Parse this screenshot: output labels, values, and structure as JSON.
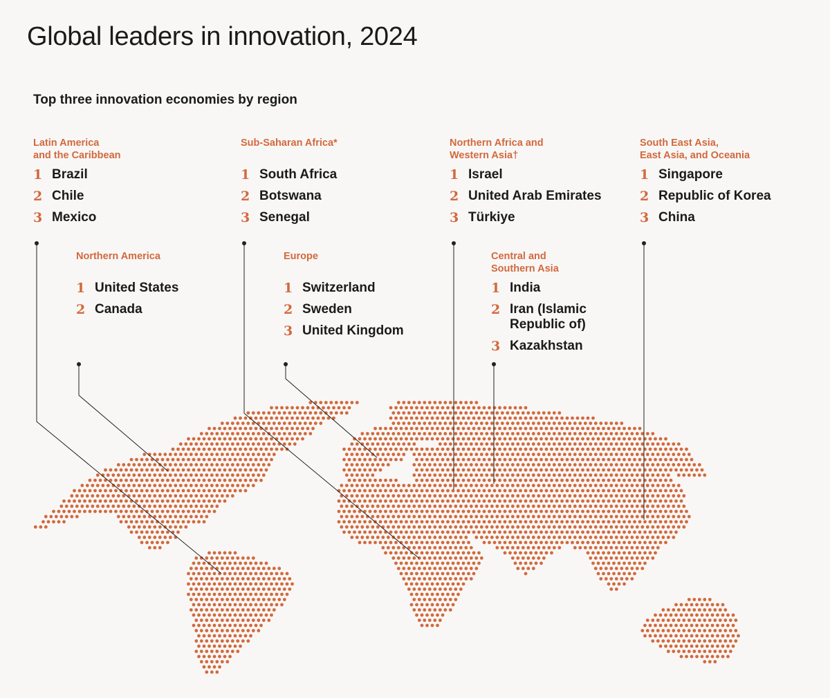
{
  "title": "Global leaders in innovation, 2024",
  "subtitle": "Top three innovation economies by region",
  "colors": {
    "accent": "#d2693c",
    "text": "#1a1a1a",
    "background": "#f8f7f6",
    "leader": "#222222"
  },
  "regions": {
    "latin_america": {
      "name": "Latin America\nand the Caribbean",
      "rankings": [
        {
          "rank": "1",
          "name": "Brazil"
        },
        {
          "rank": "2",
          "name": "Chile"
        },
        {
          "rank": "3",
          "name": "Mexico"
        }
      ]
    },
    "sub_saharan_africa": {
      "name": "Sub-Saharan Africa*",
      "rankings": [
        {
          "rank": "1",
          "name": "South Africa"
        },
        {
          "rank": "2",
          "name": "Botswana"
        },
        {
          "rank": "3",
          "name": "Senegal"
        }
      ]
    },
    "northern_africa_western_asia": {
      "name": "Northern Africa and\nWestern Asia†",
      "rankings": [
        {
          "rank": "1",
          "name": "Israel"
        },
        {
          "rank": "2",
          "name": "United Arab Emirates"
        },
        {
          "rank": "3",
          "name": "Türkiye"
        }
      ]
    },
    "se_asia_oceania": {
      "name": "South East Asia,\nEast Asia, and Oceania",
      "rankings": [
        {
          "rank": "1",
          "name": "Singapore"
        },
        {
          "rank": "2",
          "name": "Republic of Korea"
        },
        {
          "rank": "3",
          "name": "China"
        }
      ]
    },
    "northern_america": {
      "name": "Northern America",
      "rankings": [
        {
          "rank": "1",
          "name": "United States"
        },
        {
          "rank": "2",
          "name": "Canada"
        }
      ]
    },
    "europe": {
      "name": "Europe",
      "rankings": [
        {
          "rank": "1",
          "name": "Switzerland"
        },
        {
          "rank": "2",
          "name": "Sweden"
        },
        {
          "rank": "3",
          "name": "United Kingdom"
        }
      ]
    },
    "central_southern_asia": {
      "name": "Central and\nSouthern Asia",
      "rankings": [
        {
          "rank": "1",
          "name": "India"
        },
        {
          "rank": "2",
          "name": "Iran (Islamic\nRepublic of)"
        },
        {
          "rank": "3",
          "name": "Kazakhstan"
        }
      ]
    }
  }
}
